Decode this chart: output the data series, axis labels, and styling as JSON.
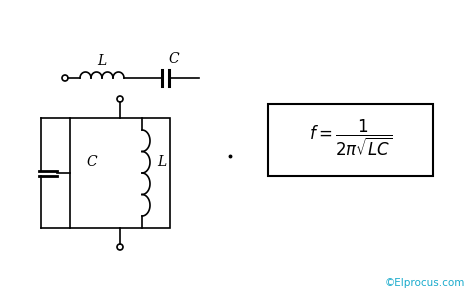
{
  "background_color": "#ffffff",
  "text_color": "#000000",
  "watermark_color": "#1aabcc",
  "watermark": "©Elprocus.com",
  "inductor_label": "L",
  "capacitor_label": "C",
  "fig_w": 4.74,
  "fig_h": 2.96,
  "dpi": 100
}
